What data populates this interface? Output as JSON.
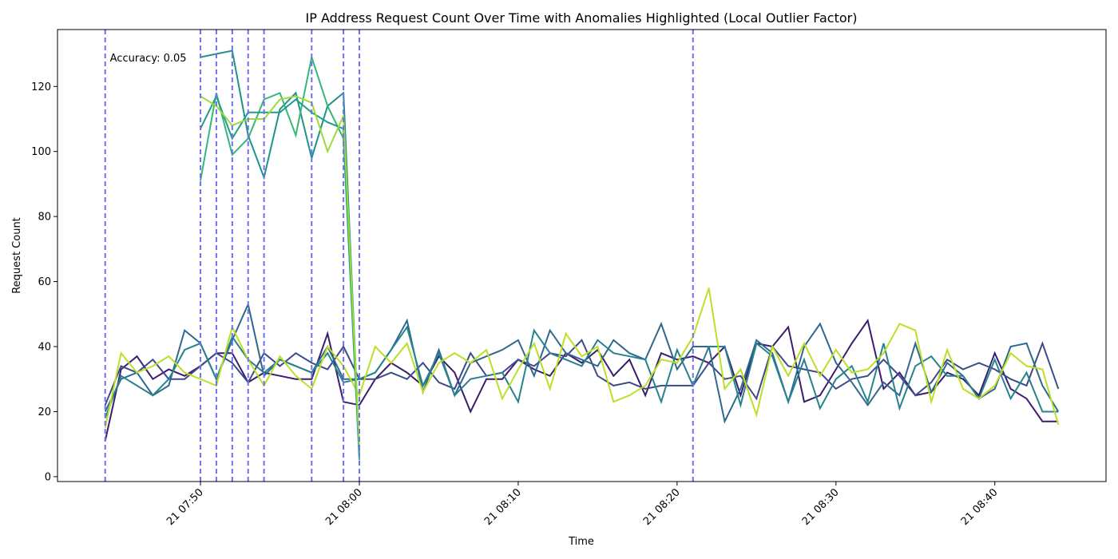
{
  "chart_data": {
    "type": "line",
    "title": "IP Address Request Count Over Time with Anomalies Highlighted (Local Outlier Factor)",
    "xlabel": "Time",
    "ylabel": "Request Count",
    "annotation": "Accuracy: 0.05",
    "x": [
      "21 07:44",
      "21 07:45",
      "21 07:46",
      "21 07:47",
      "21 07:48",
      "21 07:49",
      "21 07:50",
      "21 07:51",
      "21 07:52",
      "21 07:53",
      "21 07:54",
      "21 07:55",
      "21 07:56",
      "21 07:57",
      "21 07:58",
      "21 07:59",
      "21 08:00",
      "21 08:01",
      "21 08:02",
      "21 08:03",
      "21 08:04",
      "21 08:05",
      "21 08:06",
      "21 08:07",
      "21 08:08",
      "21 08:09",
      "21 08:10",
      "21 08:11",
      "21 08:12",
      "21 08:13",
      "21 08:14",
      "21 08:15",
      "21 08:16",
      "21 08:17",
      "21 08:18",
      "21 08:19",
      "21 08:20",
      "21 08:21",
      "21 08:22",
      "21 08:23",
      "21 08:24",
      "21 08:25",
      "21 08:26",
      "21 08:27",
      "21 08:28",
      "21 08:29",
      "21 08:30",
      "21 08:31",
      "21 08:32",
      "21 08:33",
      "21 08:34",
      "21 08:35",
      "21 08:36",
      "21 08:37",
      "21 08:38",
      "21 08:39",
      "21 08:40",
      "21 08:41",
      "21 08:42",
      "21 08:43",
      "21 08:44"
    ],
    "series": [
      {
        "color": "#3b1c6e",
        "values": [
          11,
          33,
          37,
          30,
          33,
          31,
          34,
          38,
          38,
          29,
          32,
          31,
          30,
          30,
          44,
          23,
          22,
          30,
          35,
          32,
          28,
          37,
          32,
          20,
          30,
          30,
          36,
          33,
          31,
          38,
          35,
          39,
          31,
          36,
          25,
          38,
          36,
          37,
          35,
          40,
          25,
          41,
          40,
          46,
          23,
          25,
          33,
          41,
          48,
          27,
          32,
          25,
          26,
          32,
          30,
          25,
          38,
          27,
          24,
          17,
          17
        ]
      },
      {
        "color": "#3e4a89",
        "values": [
          22,
          34,
          32,
          36,
          30,
          30,
          34,
          38,
          35,
          29,
          38,
          34,
          38,
          35,
          33,
          40,
          30,
          30,
          32,
          30,
          35,
          29,
          27,
          38,
          31,
          32,
          36,
          34,
          38,
          37,
          42,
          31,
          28,
          29,
          27,
          28,
          28,
          28,
          35,
          30,
          31,
          24,
          40,
          34,
          33,
          32,
          27,
          30,
          31,
          36,
          31,
          25,
          29,
          36,
          33,
          35,
          33,
          30,
          28,
          41,
          27
        ]
      },
      {
        "color": "#31688e",
        "values": [
          20,
          30,
          32,
          25,
          28,
          45,
          41,
          30,
          42,
          53,
          31,
          36,
          34,
          32,
          40,
          30,
          30,
          32,
          39,
          48,
          26,
          39,
          25,
          35,
          37,
          39,
          42,
          31,
          45,
          38,
          36,
          34,
          42,
          38,
          36,
          47,
          33,
          40,
          40,
          17,
          27,
          42,
          38,
          23,
          40,
          47,
          35,
          29,
          22,
          29,
          25,
          41,
          26,
          35,
          31,
          24,
          27,
          40,
          41,
          28,
          20
        ]
      },
      {
        "color": "#26828e",
        "values": [
          18,
          31,
          28,
          25,
          30,
          39,
          41,
          30,
          43,
          36,
          32,
          36,
          34,
          32,
          38,
          29,
          30,
          32,
          39,
          46,
          28,
          38,
          25,
          30,
          31,
          32,
          23,
          45,
          38,
          36,
          34,
          42,
          38,
          37,
          36,
          23,
          39,
          28,
          40,
          40,
          22,
          41,
          37,
          23,
          36,
          21,
          30,
          34,
          23,
          41,
          21,
          34,
          37,
          31,
          31,
          24,
          36,
          24,
          32,
          20,
          20
        ]
      },
      {
        "color": "#bddf26",
        "values": [
          15,
          38,
          32,
          34,
          37,
          32,
          30,
          28,
          46,
          36,
          28,
          37,
          31,
          27,
          40,
          34,
          25,
          40,
          35,
          41,
          26,
          35,
          38,
          35,
          39,
          24,
          33,
          41,
          27,
          44,
          37,
          40,
          23,
          25,
          28,
          36,
          35,
          43,
          58,
          27,
          33,
          19,
          40,
          31,
          41,
          31,
          39,
          32,
          33,
          38,
          47,
          45,
          23,
          39,
          27,
          24,
          28,
          38,
          34,
          33,
          16
        ]
      },
      {
        "color": "#21918c",
        "x": [
          "21 07:50",
          "21 07:51",
          "21 07:52",
          "21 07:53",
          "21 07:54",
          "21 07:55",
          "21 07:56",
          "21 07:57",
          "21 07:58",
          "21 07:59",
          "21 08:00"
        ],
        "values": [
          129,
          130,
          131,
          105,
          92,
          113,
          118,
          98,
          114,
          118,
          8
        ]
      },
      {
        "color": "#35b779",
        "x": [
          "21 07:50",
          "21 07:51",
          "21 07:52",
          "21 07:53",
          "21 07:54",
          "21 07:55",
          "21 07:56",
          "21 07:57",
          "21 07:58",
          "21 07:59",
          "21 08:00"
        ],
        "values": [
          91,
          118,
          99,
          104,
          116,
          118,
          105,
          129,
          114,
          104,
          5
        ]
      },
      {
        "color": "#1f9e89",
        "x": [
          "21 07:50",
          "21 07:51",
          "21 07:52",
          "21 07:53",
          "21 07:54",
          "21 07:55",
          "21 07:56",
          "21 07:57",
          "21 07:58",
          "21 07:59",
          "21 08:00"
        ],
        "values": [
          107,
          117,
          104,
          112,
          112,
          112,
          116,
          112,
          109,
          107,
          6
        ]
      },
      {
        "color": "#a0da39",
        "x": [
          "21 07:50",
          "21 07:51",
          "21 07:52",
          "21 07:53",
          "21 07:54",
          "21 07:55",
          "21 07:56",
          "21 07:57",
          "21 07:58",
          "21 07:59",
          "21 08:00"
        ],
        "values": [
          117,
          114,
          108,
          110,
          110,
          116,
          117,
          115,
          100,
          111,
          9
        ]
      }
    ],
    "anomaly_x": [
      "21 07:44",
      "21 07:50",
      "21 07:51",
      "21 07:52",
      "21 07:53",
      "21 07:54",
      "21 07:57",
      "21 07:59",
      "21 08:00",
      "21 08:21"
    ],
    "anomaly_color": "#7070f0",
    "xlim": [
      "21 07:41",
      "21 08:47"
    ],
    "ylim": [
      -1.5,
      137.5
    ],
    "xticks": [
      "21 07:50",
      "21 08:00",
      "21 08:10",
      "21 08:20",
      "21 08:30",
      "21 08:40"
    ],
    "yticks": [
      0,
      20,
      40,
      60,
      80,
      100,
      120
    ]
  }
}
